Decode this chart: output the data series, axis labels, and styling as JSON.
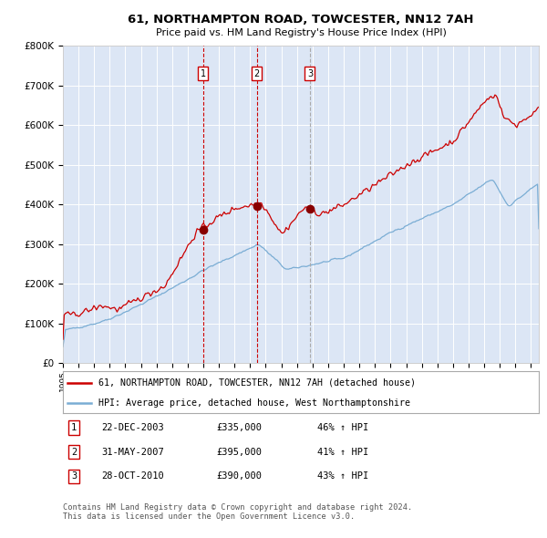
{
  "title": "61, NORTHAMPTON ROAD, TOWCESTER, NN12 7AH",
  "subtitle": "Price paid vs. HM Land Registry's House Price Index (HPI)",
  "background_color": "#dce6f5",
  "outer_bg_color": "#ffffff",
  "red_line_color": "#cc0000",
  "blue_line_color": "#7aadd4",
  "grid_color": "#ffffff",
  "vline_color_red": "#cc0000",
  "vline_color_grey": "#aaaaaa",
  "sale_marker_color": "#880000",
  "ylim": [
    0,
    800000
  ],
  "yticks": [
    0,
    100000,
    200000,
    300000,
    400000,
    500000,
    600000,
    700000,
    800000
  ],
  "ytick_labels": [
    "£0",
    "£100K",
    "£200K",
    "£300K",
    "£400K",
    "£500K",
    "£600K",
    "£700K",
    "£800K"
  ],
  "legend_entry1": "61, NORTHAMPTON ROAD, TOWCESTER, NN12 7AH (detached house)",
  "legend_entry2": "HPI: Average price, detached house, West Northamptonshire",
  "sale1_date": "22-DEC-2003",
  "sale1_year": 2003.97,
  "sale1_price": 335000,
  "sale1_label": "£335,000",
  "sale1_pct": "46% ↑ HPI",
  "sale2_date": "31-MAY-2007",
  "sale2_year": 2007.42,
  "sale2_price": 395000,
  "sale2_label": "£395,000",
  "sale2_pct": "41% ↑ HPI",
  "sale3_date": "28-OCT-2010",
  "sale3_year": 2010.83,
  "sale3_price": 390000,
  "sale3_label": "£390,000",
  "sale3_pct": "43% ↑ HPI",
  "copyright_text": "Contains HM Land Registry data © Crown copyright and database right 2024.\nThis data is licensed under the Open Government Licence v3.0.",
  "xmin": 1995.0,
  "xmax": 2025.5
}
